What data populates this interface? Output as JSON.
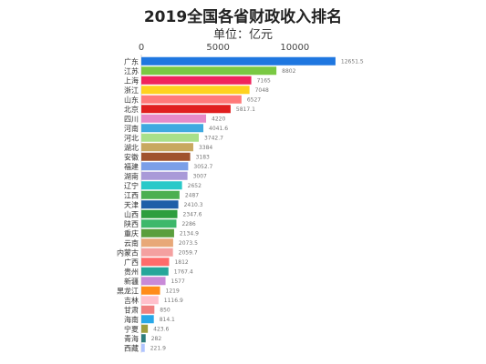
{
  "chart_data": {
    "type": "bar",
    "orientation": "horizontal",
    "title": "2019全国各省财政收入排名",
    "subtitle": "单位：亿元",
    "xlabel": "",
    "ylabel": "",
    "xlim": [
      0,
      13500
    ],
    "xticks": [
      "0",
      "5000",
      "10000"
    ],
    "tick_values": [
      0,
      5000,
      10000
    ],
    "grid": false,
    "categories": [
      "广东",
      "江苏",
      "上海",
      "浙江",
      "山东",
      "北京",
      "四川",
      "河南",
      "河北",
      "湖北",
      "安徽",
      "福建",
      "湖南",
      "辽宁",
      "江西",
      "天津",
      "山西",
      "陕西",
      "重庆",
      "云南",
      "内蒙古",
      "广西",
      "贵州",
      "新疆",
      "黑龙江",
      "吉林",
      "甘肃",
      "海南",
      "宁夏",
      "青海",
      "西藏"
    ],
    "values": [
      12651.5,
      8802,
      7165,
      7048,
      6527,
      5817.1,
      4220,
      4041.6,
      3742.7,
      3384,
      3183,
      3052.7,
      3007,
      2652,
      2487,
      2410.3,
      2347.6,
      2286,
      2134.9,
      2073.5,
      2059.7,
      1812,
      1767.4,
      1577,
      1219,
      1116.9,
      850,
      814.1,
      423.6,
      282,
      221.9
    ],
    "value_labels": [
      "12651.5",
      "8802",
      "7165",
      "7048",
      "6527",
      "5817.1",
      "4220",
      "4041.6",
      "3742.7",
      "3384",
      "3183",
      "3052.7",
      "3007",
      "2652",
      "2487",
      "2410.3",
      "2347.6",
      "2286",
      "2134.9",
      "2073.5",
      "2059.7",
      "1812",
      "1767.4",
      "1577",
      "1219",
      "1116.9",
      "850",
      "814.1",
      "423.6",
      "282",
      "221.9"
    ],
    "colors": [
      "#1f77e0",
      "#7ac943",
      "#f0245c",
      "#ffd21f",
      "#ff7a7a",
      "#e01f1f",
      "#e68ac8",
      "#3fa9e0",
      "#a8e08a",
      "#c8a860",
      "#a0522d",
      "#7b9fe8",
      "#a99ad8",
      "#29c9c9",
      "#4caf50",
      "#1f5fa8",
      "#2e9e3e",
      "#3db86b",
      "#5a9e3c",
      "#e8a878",
      "#f4a0a0",
      "#ff6b6b",
      "#26a69a",
      "#c98ad8",
      "#ff8c1a",
      "#ffc0cb",
      "#f08080",
      "#29a8e8",
      "#9e9e3e",
      "#2e7d7d",
      "#b0c4ff"
    ]
  }
}
